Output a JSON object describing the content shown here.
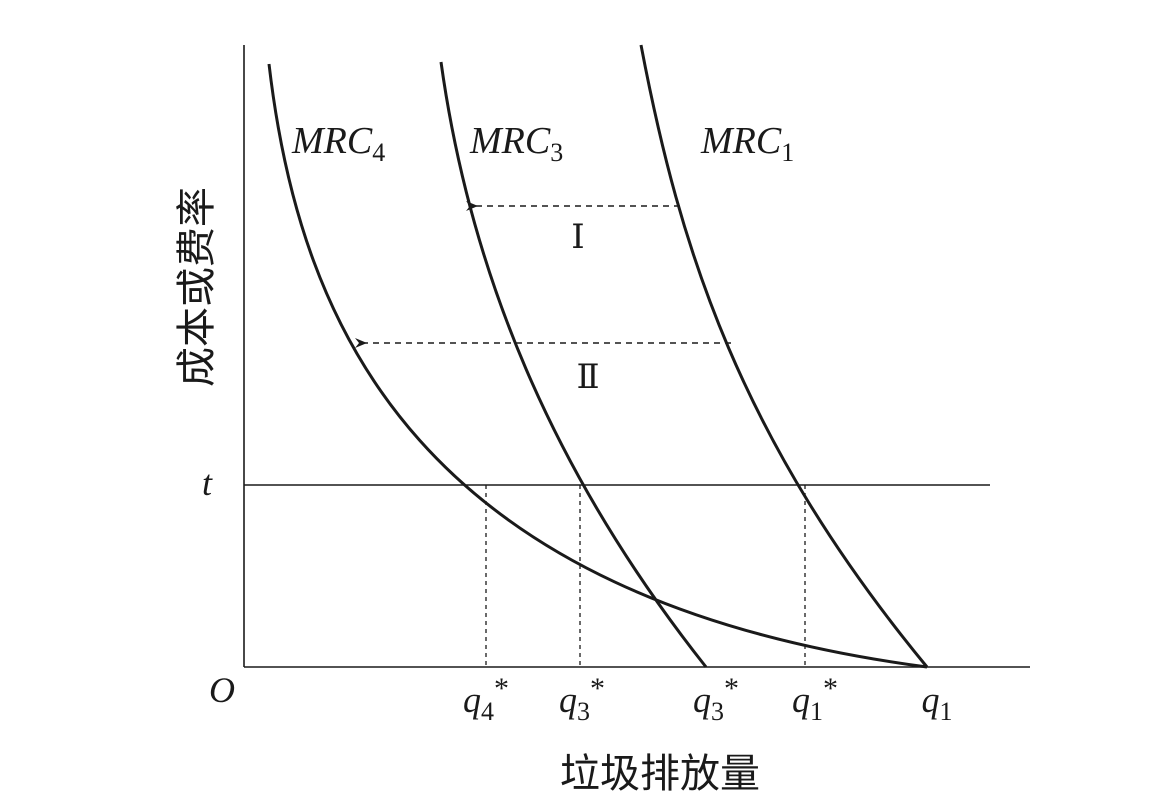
{
  "axes": {
    "y_label": "成本或费率",
    "x_label": "垃圾排放量",
    "origin": "O",
    "t_label": "t"
  },
  "curves": {
    "mrc4": {
      "main": "MRC",
      "sub": "4"
    },
    "mrc3": {
      "main": "MRC",
      "sub": "3"
    },
    "mrc1": {
      "main": "MRC",
      "sub": "1"
    }
  },
  "regions": {
    "region1": "Ⅰ",
    "region2": "Ⅱ"
  },
  "ticks": [
    {
      "name": "tick-q4-star",
      "main": "q",
      "sub": "4",
      "sup": "*"
    },
    {
      "name": "tick-q3-star-a",
      "main": "q",
      "sub": "3",
      "sup": "*"
    },
    {
      "name": "tick-q3-star-b",
      "main": "q",
      "sub": "3",
      "sup": "*"
    },
    {
      "name": "tick-q1-star",
      "main": "q",
      "sub": "1",
      "sup": "*"
    },
    {
      "name": "tick-q1",
      "main": "q",
      "sub": "1",
      "sup": ""
    }
  ],
  "colors": {
    "ink": "#1a1a1a"
  }
}
